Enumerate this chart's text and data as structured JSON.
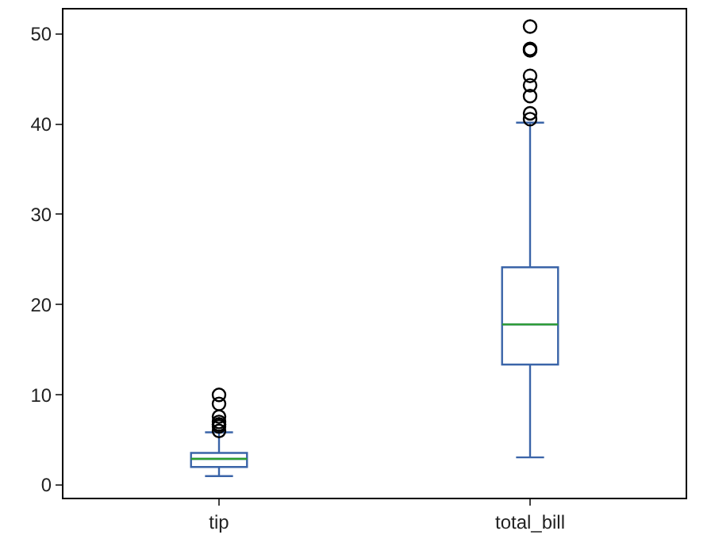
{
  "chart_data": {
    "type": "box",
    "categories": [
      "tip",
      "total_bill"
    ],
    "color": "#3a64a8",
    "boxes": [
      {
        "low": 1.0,
        "q1": 2.0,
        "median": 2.9,
        "q3": 3.56,
        "high": 5.85,
        "outliers": [
          6.0,
          6.5,
          6.7,
          6.73,
          7.0,
          7.58,
          9.0,
          10.0
        ]
      },
      {
        "low": 3.07,
        "q1": 13.35,
        "median": 17.8,
        "q3": 24.13,
        "high": 40.17,
        "outliers": [
          40.55,
          41.19,
          43.11,
          44.3,
          45.35,
          48.17,
          48.27,
          48.33,
          50.81
        ]
      }
    ],
    "ylim": [
      -1.4,
      52.7
    ],
    "yticks": [
      0,
      10,
      20,
      30,
      40,
      50
    ],
    "grid": false
  }
}
